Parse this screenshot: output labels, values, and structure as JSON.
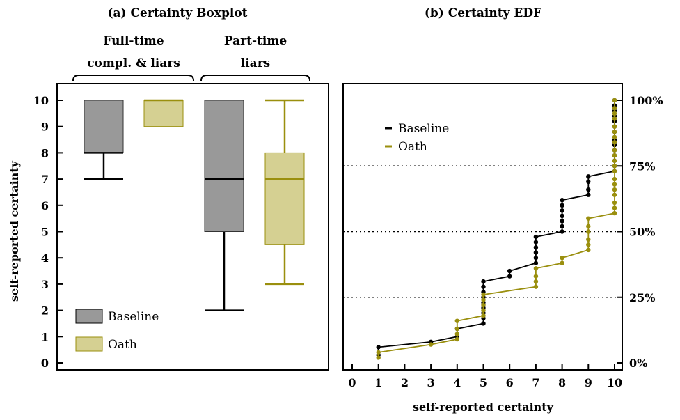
{
  "colors": {
    "baseline": "#000000",
    "baseline_box": "#999999",
    "oath": "#9a8f0e",
    "oath_box": "#d5d092"
  },
  "chart_data": [
    {
      "type": "boxplot",
      "title": "(a) Certainty Boxplot",
      "ylabel": "self-reported certainty",
      "ylim": [
        0,
        10
      ],
      "yticks": [
        "0",
        "1",
        "2",
        "3",
        "4",
        "5",
        "6",
        "7",
        "8",
        "9",
        "10"
      ],
      "groups": [
        {
          "label_lines": [
            "Full-time",
            "compl. & liars"
          ]
        },
        {
          "label_lines": [
            "Part-time",
            "liars"
          ]
        }
      ],
      "series": [
        {
          "name": "Baseline",
          "boxes": [
            {
              "group": 0,
              "min": 7,
              "q1": 8,
              "median": 8,
              "q3": 10,
              "max": 10
            },
            {
              "group": 1,
              "min": 2,
              "q1": 5,
              "median": 7,
              "q3": 10,
              "max": 10
            }
          ]
        },
        {
          "name": "Oath",
          "boxes": [
            {
              "group": 0,
              "min": 9,
              "q1": 9,
              "median": 10,
              "q3": 10,
              "max": 10
            },
            {
              "group": 1,
              "min": 3,
              "q1": 4.5,
              "median": 7,
              "q3": 8,
              "max": 10
            }
          ]
        }
      ],
      "legend": "bottom-left"
    },
    {
      "type": "line",
      "title": "(b) Certainty EDF",
      "xlabel": "self-reported certainty",
      "xlim": [
        0,
        10
      ],
      "ylim": [
        0,
        100
      ],
      "xticks": [
        "0",
        "1",
        "2",
        "3",
        "4",
        "5",
        "6",
        "7",
        "8",
        "9",
        "10"
      ],
      "yticks": [
        "0%",
        "25%",
        "50%",
        "75%",
        "100%"
      ],
      "y_axis_side": "right",
      "reference_lines": [
        25,
        50,
        75
      ],
      "legend": "top-left",
      "series": [
        {
          "name": "Baseline",
          "points": [
            {
              "x": 1,
              "ys": [
                3,
                6
              ]
            },
            {
              "x": 3,
              "ys": [
                8
              ]
            },
            {
              "x": 4,
              "ys": [
                10,
                13
              ]
            },
            {
              "x": 5,
              "ys": [
                15,
                17,
                19,
                21,
                23,
                25,
                27,
                29,
                31
              ]
            },
            {
              "x": 6,
              "ys": [
                33,
                35
              ]
            },
            {
              "x": 7,
              "ys": [
                38,
                40,
                42,
                44,
                46,
                48
              ]
            },
            {
              "x": 8,
              "ys": [
                50,
                52,
                54,
                56,
                58,
                60,
                62
              ]
            },
            {
              "x": 9,
              "ys": [
                64,
                66,
                69,
                71
              ]
            },
            {
              "x": 10,
              "ys": [
                73,
                75,
                77,
                79,
                81,
                83,
                85,
                88,
                90,
                92,
                94,
                96,
                98,
                100
              ]
            }
          ]
        },
        {
          "name": "Oath",
          "points": [
            {
              "x": 1,
              "ys": [
                2,
                4
              ]
            },
            {
              "x": 3,
              "ys": [
                7
              ]
            },
            {
              "x": 4,
              "ys": [
                9,
                11,
                13,
                16
              ]
            },
            {
              "x": 5,
              "ys": [
                18,
                20,
                22,
                24,
                26
              ]
            },
            {
              "x": 7,
              "ys": [
                29,
                31,
                33,
                36
              ]
            },
            {
              "x": 8,
              "ys": [
                38,
                40
              ]
            },
            {
              "x": 9,
              "ys": [
                43,
                45,
                47,
                50,
                52,
                55
              ]
            },
            {
              "x": 10,
              "ys": [
                57,
                59,
                61,
                64,
                66,
                68,
                70,
                73,
                75,
                77,
                79,
                81,
                84,
                86,
                88,
                90,
                93,
                95,
                97,
                100
              ]
            }
          ]
        }
      ]
    }
  ]
}
